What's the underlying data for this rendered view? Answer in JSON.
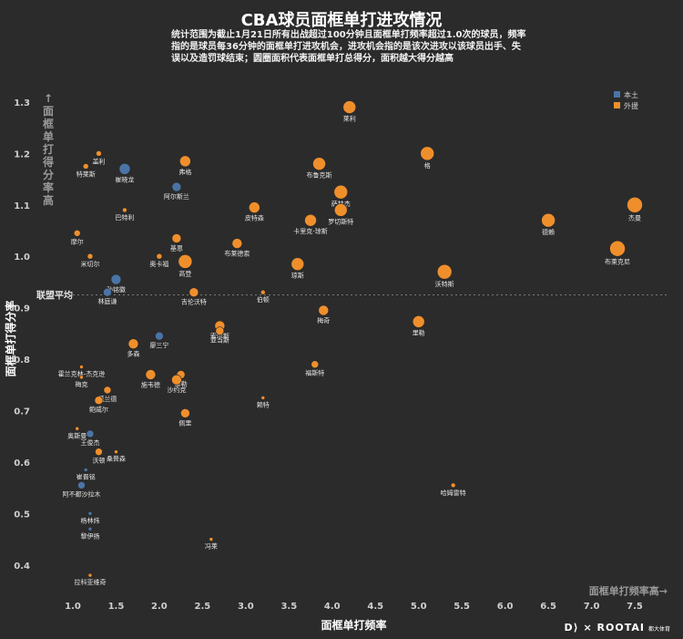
{
  "title": "CBA球员面框单打进攻情况",
  "subtitle": "统计范围为截止1月21日所有出战超过100分钟且面框单打频率超过1.0次的球员，频率指的是球员每36分钟的面框单打进攻机会，进攻机会指的是该次进攻以该球员出手、失误以及造罚球结束；圆圈面积代表面框单打总得分，面积越大得分越高",
  "footer": {
    "brand": "D⟩ × ROOTAI",
    "sub": "都大体育"
  },
  "colors": {
    "local": "#4a74a6",
    "foreign": "#ef8f2c",
    "background": "#2b2b2b",
    "text": "#e8e8e8",
    "avg_line": "#7a7a7a"
  },
  "chart_data": {
    "type": "scatter",
    "xlabel": "面框单打频率",
    "ylabel": "面框单打得分率",
    "xlim": [
      0.6,
      7.9
    ],
    "ylim": [
      0.35,
      1.33
    ],
    "xticks": [
      1.0,
      1.5,
      2.0,
      2.5,
      3.0,
      3.5,
      4.0,
      4.5,
      5.0,
      5.5,
      6.0,
      6.5,
      7.0,
      7.5
    ],
    "yticks": [
      0.4,
      0.5,
      0.6,
      0.7,
      0.8,
      0.9,
      1.0,
      1.1,
      1.2,
      1.3
    ],
    "x_annotation": "面框单打频率高→",
    "y_annotation": "↑面框单打得分率高",
    "average_line": {
      "y": 0.925,
      "label": "联盟平均"
    },
    "legend": {
      "position": "top-right",
      "entries": [
        {
          "key": "local",
          "label": "本土"
        },
        {
          "key": "foreign",
          "label": "外援"
        }
      ]
    },
    "series": [
      {
        "name": "本土",
        "key": "local",
        "points": [
          {
            "name": "崔晓龙",
            "x": 1.6,
            "y": 1.17,
            "s": 6
          },
          {
            "name": "阿尔斯兰",
            "x": 2.2,
            "y": 1.135,
            "s": 5
          },
          {
            "name": "孙铭徽",
            "x": 1.5,
            "y": 0.955,
            "s": 5.5
          },
          {
            "name": "林庭谦",
            "x": 1.4,
            "y": 0.93,
            "s": 4.5
          },
          {
            "name": "廖三宁",
            "x": 2.0,
            "y": 0.845,
            "s": 4.5
          },
          {
            "name": "王俊杰",
            "x": 1.2,
            "y": 0.655,
            "s": 4
          },
          {
            "name": "崔晋铭",
            "x": 1.15,
            "y": 0.585,
            "s": 2
          },
          {
            "name": "阿不都沙拉木",
            "x": 1.1,
            "y": 0.555,
            "s": 4
          },
          {
            "name": "杨林炜",
            "x": 1.2,
            "y": 0.5,
            "s": 2
          },
          {
            "name": "黎伊扬",
            "x": 1.2,
            "y": 0.47,
            "s": 2
          }
        ]
      },
      {
        "name": "外援",
        "key": "foreign",
        "points": [
          {
            "name": "莱利",
            "x": 4.2,
            "y": 1.29,
            "s": 7
          },
          {
            "name": "格",
            "x": 5.1,
            "y": 1.2,
            "s": 7.5
          },
          {
            "name": "盖利",
            "x": 1.3,
            "y": 1.2,
            "s": 3
          },
          {
            "name": "特莱斯",
            "x": 1.15,
            "y": 1.175,
            "s": 3
          },
          {
            "name": "弗格",
            "x": 2.3,
            "y": 1.185,
            "s": 6
          },
          {
            "name": "布鲁克斯",
            "x": 3.85,
            "y": 1.18,
            "s": 7
          },
          {
            "name": "萨林杰",
            "x": 4.1,
            "y": 1.125,
            "s": 7.5
          },
          {
            "name": "巴特利",
            "x": 1.6,
            "y": 1.09,
            "s": 2.5
          },
          {
            "name": "皮特森",
            "x": 3.1,
            "y": 1.095,
            "s": 6
          },
          {
            "name": "罗切斯特",
            "x": 4.1,
            "y": 1.09,
            "s": 7
          },
          {
            "name": "卡里克-琼斯",
            "x": 3.75,
            "y": 1.07,
            "s": 6.5
          },
          {
            "name": "杰曼",
            "x": 7.5,
            "y": 1.1,
            "s": 8.5
          },
          {
            "name": "德赖",
            "x": 6.5,
            "y": 1.07,
            "s": 7.5
          },
          {
            "name": "摩尔",
            "x": 1.05,
            "y": 1.045,
            "s": 3.5
          },
          {
            "name": "基恩",
            "x": 2.2,
            "y": 1.035,
            "s": 5
          },
          {
            "name": "布莱德索",
            "x": 2.9,
            "y": 1.025,
            "s": 5.5
          },
          {
            "name": "布莱克尼",
            "x": 7.3,
            "y": 1.015,
            "s": 8.5
          },
          {
            "name": "米切尔",
            "x": 1.2,
            "y": 1.0,
            "s": 3
          },
          {
            "name": "奥卡福",
            "x": 2.0,
            "y": 1.0,
            "s": 3
          },
          {
            "name": "高登",
            "x": 2.3,
            "y": 0.99,
            "s": 7.5
          },
          {
            "name": "琼斯",
            "x": 3.6,
            "y": 0.985,
            "s": 7
          },
          {
            "name": "沃特斯",
            "x": 5.3,
            "y": 0.97,
            "s": 8
          },
          {
            "name": "吉伦沃特",
            "x": 2.4,
            "y": 0.93,
            "s": 5
          },
          {
            "name": "伯顿",
            "x": 3.2,
            "y": 0.93,
            "s": 2.5
          },
          {
            "name": "梅奇",
            "x": 3.9,
            "y": 0.895,
            "s": 5.5
          },
          {
            "name": "索尔斯",
            "x": 2.7,
            "y": 0.865,
            "s": 5.5
          },
          {
            "name": "亚当斯",
            "x": 2.7,
            "y": 0.855,
            "s": 4.5
          },
          {
            "name": "里勒",
            "x": 5.0,
            "y": 0.873,
            "s": 6.5
          },
          {
            "name": "多森",
            "x": 1.7,
            "y": 0.83,
            "s": 5.5
          },
          {
            "name": "福斯特",
            "x": 3.8,
            "y": 0.79,
            "s": 4
          },
          {
            "name": "霍兰克林-杰克逊",
            "x": 1.1,
            "y": 0.785,
            "s": 2
          },
          {
            "name": "梅克",
            "x": 1.1,
            "y": 0.765,
            "s": 2
          },
          {
            "name": "施韦德",
            "x": 1.9,
            "y": 0.77,
            "s": 5.5
          },
          {
            "name": "泰勒",
            "x": 2.25,
            "y": 0.77,
            "s": 4.5
          },
          {
            "name": "沙约克",
            "x": 2.2,
            "y": 0.76,
            "s": 5.5
          },
          {
            "name": "莫兰德",
            "x": 1.4,
            "y": 0.74,
            "s": 4
          },
          {
            "name": "鲍威尔",
            "x": 1.3,
            "y": 0.72,
            "s": 4.5
          },
          {
            "name": "赖特",
            "x": 3.2,
            "y": 0.725,
            "s": 2
          },
          {
            "name": "佩里",
            "x": 2.3,
            "y": 0.695,
            "s": 5
          },
          {
            "name": "奥斯曼",
            "x": 1.05,
            "y": 0.665,
            "s": 2
          },
          {
            "name": "沃顿",
            "x": 1.3,
            "y": 0.62,
            "s": 4
          },
          {
            "name": "桑普森",
            "x": 1.5,
            "y": 0.62,
            "s": 2
          },
          {
            "name": "哈姆雷特",
            "x": 5.4,
            "y": 0.555,
            "s": 2.5
          },
          {
            "name": "冯莱",
            "x": 2.6,
            "y": 0.45,
            "s": 2
          },
          {
            "name": "拉科亚维奇",
            "x": 1.2,
            "y": 0.38,
            "s": 2
          }
        ]
      }
    ]
  }
}
